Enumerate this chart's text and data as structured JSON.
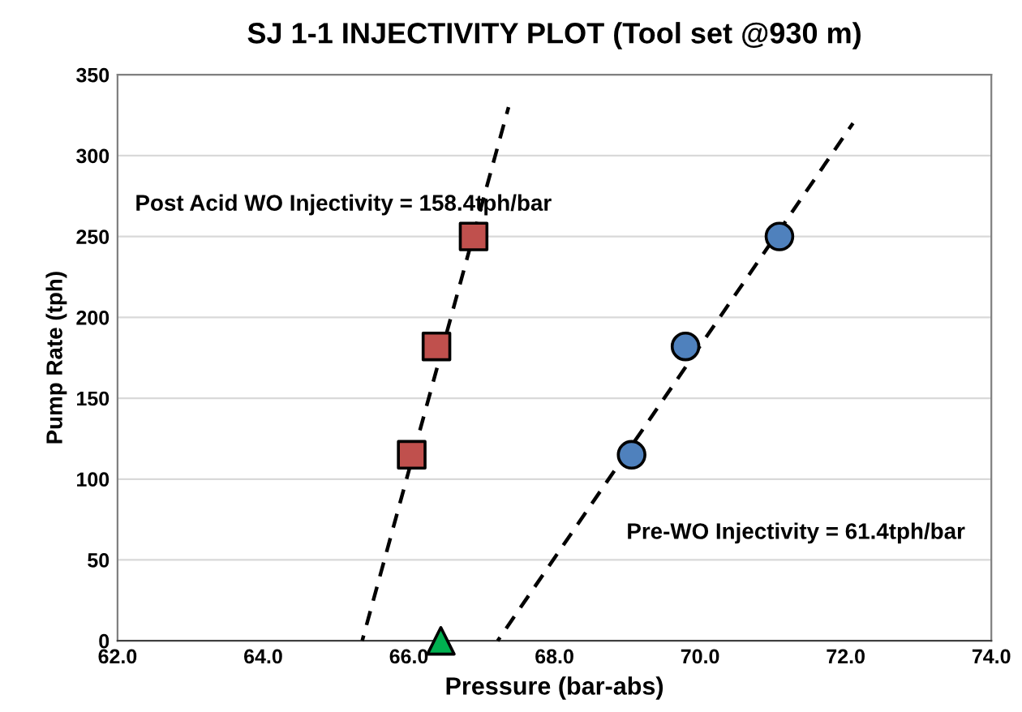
{
  "chart_data": {
    "type": "scatter",
    "title": "SJ 1-1 INJECTIVITY PLOT (Tool set @930 m)",
    "xlabel": "Pressure (bar-abs)",
    "ylabel": "Pump Rate (tph)",
    "xlim": [
      62,
      74
    ],
    "xticks": [
      {
        "value": 62,
        "label": "62.0"
      },
      {
        "value": 64,
        "label": "64.0"
      },
      {
        "value": 66,
        "label": "66.0"
      },
      {
        "value": 68,
        "label": "68.0"
      },
      {
        "value": 70,
        "label": "70.0"
      },
      {
        "value": 72,
        "label": "72.0"
      },
      {
        "value": 74,
        "label": "74.0"
      }
    ],
    "ylim": [
      0,
      350
    ],
    "yticks": [
      0,
      50,
      100,
      150,
      200,
      250,
      300,
      350
    ],
    "grid": "y",
    "legend": false,
    "series": [
      {
        "type": "line",
        "color": "#000000",
        "line_style": "dashed",
        "marker": "none",
        "x": [
          65.36,
          67.37
        ],
        "values": [
          0,
          330
        ]
      },
      {
        "type": "line",
        "color": "#000000",
        "line_style": "dashed",
        "marker": "none",
        "x": [
          67.22,
          72.1
        ],
        "values": [
          0,
          320
        ]
      },
      {
        "type": "scatter",
        "color": "#c0504d",
        "marker": "square",
        "x": [
          66.04,
          66.38,
          66.89
        ],
        "values": [
          115,
          182,
          250
        ]
      },
      {
        "type": "scatter",
        "color": "#4f81bd",
        "marker": "circle",
        "x": [
          69.06,
          69.8,
          71.09
        ],
        "values": [
          115,
          182,
          250
        ]
      },
      {
        "type": "scatter",
        "color": "#00b050",
        "marker": "triangle",
        "x": [
          66.44
        ],
        "values": [
          0
        ]
      }
    ],
    "annotations": [
      "Post Acid WO Injectivity = 158.4tph/bar",
      "Pre-WO Injectivity = 61.4tph/bar"
    ]
  }
}
